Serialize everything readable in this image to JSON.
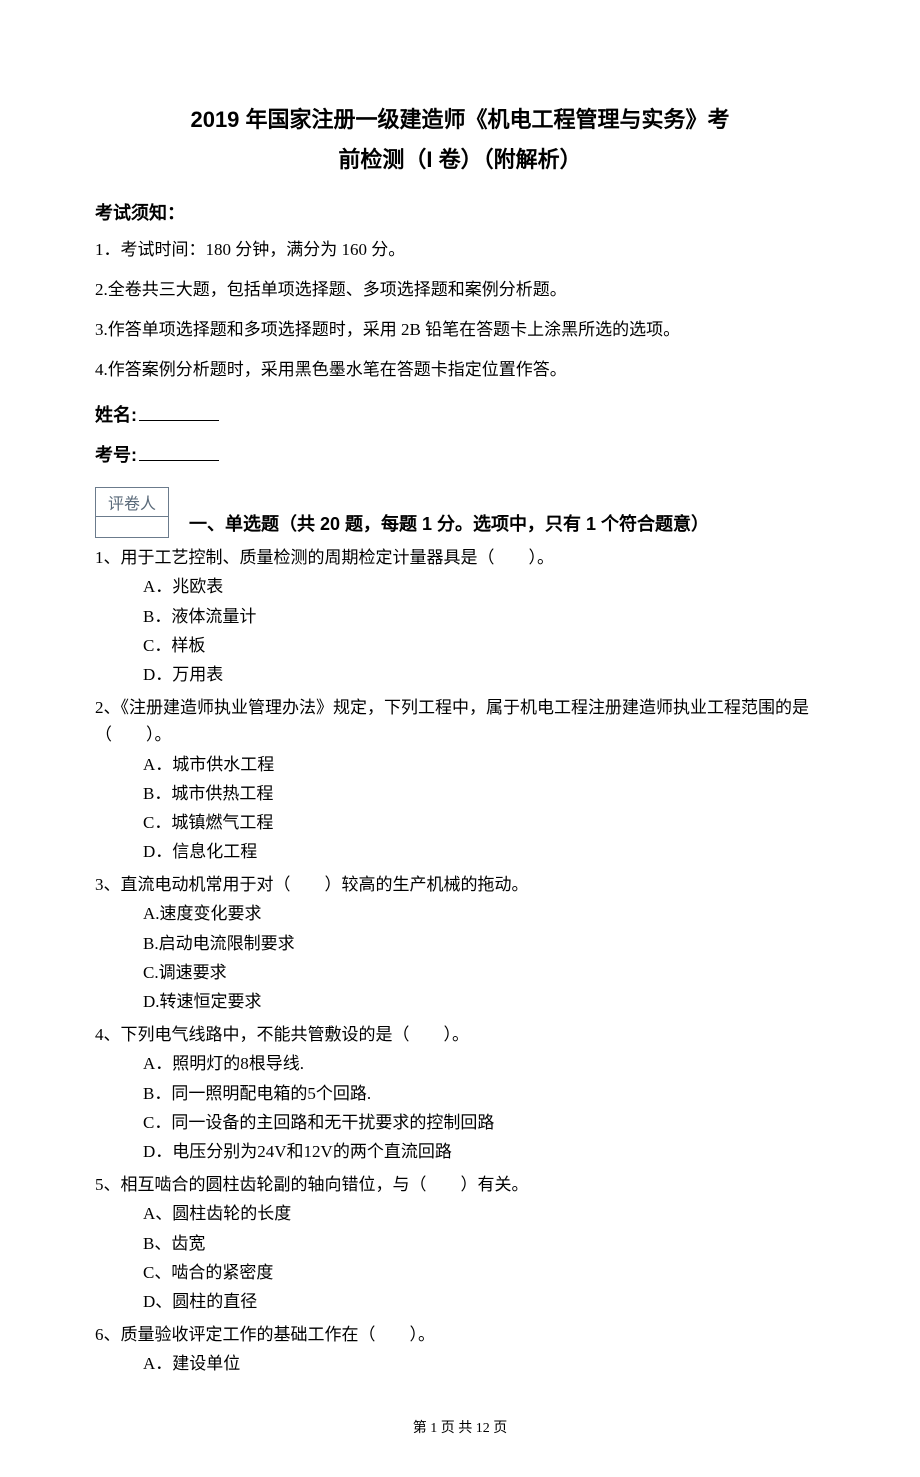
{
  "title": {
    "line1": "2019 年国家注册一级建造师《机电工程管理与实务》考",
    "line2": "前检测（I 卷）（附解析）"
  },
  "notice": {
    "heading": "考试须知：",
    "items": [
      "1．考试时间：180 分钟，满分为 160 分。",
      "2.全卷共三大题，包括单项选择题、多项选择题和案例分析题。",
      "3.作答单项选择题和多项选择题时，采用 2B 铅笔在答题卡上涂黑所选的选项。",
      "4.作答案例分析题时，采用黑色墨水笔在答题卡指定位置作答。"
    ]
  },
  "fields": {
    "name_label": "姓名:",
    "id_label": "考号:"
  },
  "grader_label": "评卷人",
  "section1_title": "一、单选题（共 20 题，每题 1 分。选项中，只有 1 个符合题意）",
  "questions": [
    {
      "stem": "1、用于工艺控制、质量检测的周期检定计量器具是（　　）。",
      "options": [
        "A．兆欧表",
        "B．液体流量计",
        "C．样板",
        "D．万用表"
      ]
    },
    {
      "stem": "2、《注册建造师执业管理办法》规定，下列工程中，属于机电工程注册建造师执业工程范围的是（　　）。",
      "options": [
        "A．城市供水工程",
        "B．城市供热工程",
        "C．城镇燃气工程",
        "D．信息化工程"
      ]
    },
    {
      "stem": "3、直流电动机常用于对（　　）较高的生产机械的拖动。",
      "options": [
        "A.速度变化要求",
        "B.启动电流限制要求",
        "C.调速要求",
        "D.转速恒定要求"
      ]
    },
    {
      "stem": "4、下列电气线路中，不能共管敷设的是（　　）。",
      "options": [
        "A．照明灯的8根导线.",
        "B．同一照明配电箱的5个回路.",
        "C．同一设备的主回路和无干扰要求的控制回路",
        "D．电压分别为24V和12V的两个直流回路"
      ]
    },
    {
      "stem": "5、相互啮合的圆柱齿轮副的轴向错位，与（　　）有关。",
      "options": [
        "A、圆柱齿轮的长度",
        "B、齿宽",
        "C、啮合的紧密度",
        "D、圆柱的直径"
      ]
    },
    {
      "stem": "6、质量验收评定工作的基础工作在（　　）。",
      "options": [
        "A．建设单位"
      ]
    }
  ],
  "footer": "第 1 页 共 12 页"
}
